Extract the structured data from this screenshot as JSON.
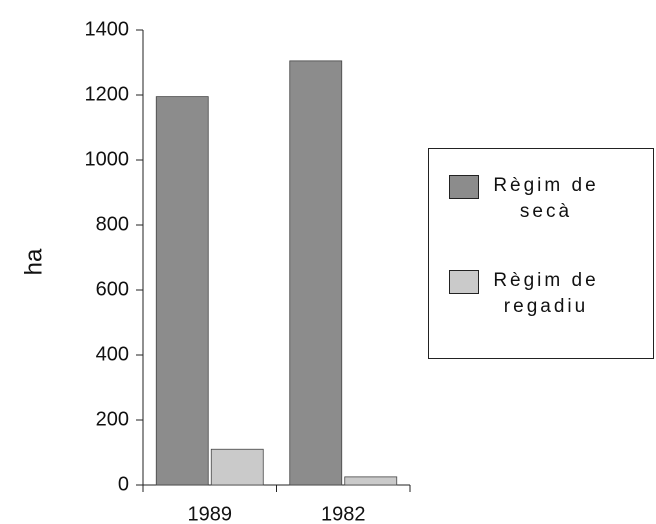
{
  "chart_data": {
    "type": "bar",
    "categories": [
      "1989",
      "1982"
    ],
    "series": [
      {
        "name": "Règim de secà",
        "color": "#8c8c8c",
        "values": [
          1195,
          1305
        ]
      },
      {
        "name": "Règim de regadiu",
        "color": "#cacaca",
        "values": [
          110,
          25
        ]
      }
    ],
    "ylabel": "ha",
    "ylim": [
      0,
      1400
    ],
    "yticks": [
      0,
      200,
      400,
      600,
      800,
      1000,
      1200,
      1400
    ],
    "legend": "right"
  }
}
